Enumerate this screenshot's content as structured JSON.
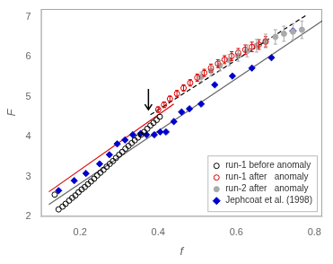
{
  "chart_data": {
    "type": "scatter",
    "xlabel": "f",
    "ylabel": "F",
    "xlim": [
      0.1,
      0.82
    ],
    "ylim": [
      2.0,
      7.2
    ],
    "xticks": [
      0.2,
      0.4,
      0.6,
      0.8
    ],
    "yticks": [
      2,
      3,
      4,
      5,
      6,
      7
    ],
    "grid": false,
    "legend": "lower right",
    "series": [
      {
        "name": "run-1 before anomaly",
        "type": "scatter",
        "marker": "open-circle",
        "color": "#000000",
        "x": [
          0.135,
          0.145,
          0.155,
          0.163,
          0.172,
          0.18,
          0.188,
          0.196,
          0.204,
          0.212,
          0.22,
          0.228,
          0.236,
          0.244,
          0.252,
          0.26,
          0.268,
          0.276,
          0.284,
          0.292,
          0.3,
          0.308,
          0.316,
          0.324,
          0.332,
          0.34,
          0.348,
          0.356,
          0.364,
          0.372,
          0.38,
          0.388,
          0.396,
          0.404
        ],
        "values": [
          2.55,
          2.18,
          2.25,
          2.32,
          2.4,
          2.47,
          2.53,
          2.61,
          2.68,
          2.74,
          2.81,
          2.88,
          2.95,
          3.03,
          3.1,
          3.17,
          3.25,
          3.32,
          3.39,
          3.47,
          3.55,
          3.62,
          3.7,
          3.77,
          3.84,
          3.91,
          3.98,
          4.05,
          4.12,
          4.2,
          4.28,
          4.35,
          4.42,
          4.5
        ]
      },
      {
        "name": "run-1 after   anomaly",
        "type": "scatter",
        "marker": "open-circle",
        "color": "#dd0000",
        "x": [
          0.4,
          0.415,
          0.43,
          0.448,
          0.465,
          0.482,
          0.5,
          0.518,
          0.535,
          0.553,
          0.57,
          0.588,
          0.605,
          0.623,
          0.64,
          0.658,
          0.675
        ],
        "values": [
          4.68,
          4.8,
          4.95,
          5.08,
          5.22,
          5.35,
          5.48,
          5.6,
          5.72,
          5.83,
          5.93,
          6.02,
          6.1,
          6.18,
          6.25,
          6.31,
          6.38
        ],
        "yerr": [
          0.07,
          0.07,
          0.07,
          0.08,
          0.08,
          0.08,
          0.09,
          0.09,
          0.1,
          0.1,
          0.1,
          0.11,
          0.11,
          0.12,
          0.12,
          0.12,
          0.13
        ]
      },
      {
        "name": "run-2 after   anomaly",
        "type": "scatter",
        "marker": "circle",
        "color": "#aaaaaa",
        "x": [
          0.51,
          0.535,
          0.558,
          0.582,
          0.605,
          0.628,
          0.652,
          0.675,
          0.7,
          0.722,
          0.745,
          0.768
        ],
        "values": [
          5.5,
          5.65,
          5.78,
          5.92,
          6.03,
          6.15,
          6.28,
          6.4,
          6.5,
          6.58,
          6.63,
          6.68
        ],
        "yerr": [
          0.12,
          0.13,
          0.13,
          0.14,
          0.14,
          0.15,
          0.16,
          0.17,
          0.18,
          0.19,
          0.2,
          0.22
        ]
      },
      {
        "name": "Jephcoat et al. (1998)",
        "type": "scatter",
        "marker": "diamond",
        "color": "#0000cc",
        "x": [
          0.145,
          0.185,
          0.215,
          0.25,
          0.275,
          0.295,
          0.315,
          0.335,
          0.355,
          0.37,
          0.39,
          0.405,
          0.42,
          0.44,
          0.46,
          0.48,
          0.51,
          0.545,
          0.59,
          0.64,
          0.69,
          0.745
        ],
        "values": [
          2.65,
          2.9,
          3.08,
          3.32,
          3.55,
          3.82,
          3.92,
          4.05,
          4.08,
          4.05,
          4.05,
          4.12,
          4.12,
          4.38,
          4.62,
          4.7,
          4.82,
          5.3,
          5.52,
          5.72,
          5.98,
          6.65
        ]
      },
      {
        "type": "line",
        "line_style": "solid",
        "color": "#666666",
        "x": [
          0.12,
          0.82
        ],
        "values": [
          2.3,
          6.9
        ]
      },
      {
        "type": "line",
        "line_style": "solid",
        "color": "#dd0000",
        "x": [
          0.12,
          0.44
        ],
        "values": [
          2.62,
          4.82
        ]
      },
      {
        "type": "line",
        "line_style": "dashed",
        "color": "#000000",
        "x": [
          0.38,
          0.78
        ],
        "values": [
          4.55,
          7.05
        ]
      }
    ],
    "arrow": {
      "x": 0.375,
      "from": 5.2,
      "to": 4.68
    }
  }
}
